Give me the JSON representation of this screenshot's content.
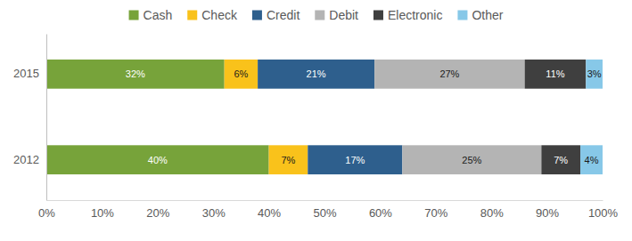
{
  "chart_data": {
    "type": "bar",
    "orientation": "horizontal",
    "stacked": true,
    "data_labels": true,
    "grid": false,
    "legend": "top",
    "categories": [
      "2015",
      "2012"
    ],
    "xlim": [
      0,
      100
    ],
    "xticks": [
      {
        "value": 0,
        "label": "0%"
      },
      {
        "value": 10,
        "label": "10%"
      },
      {
        "value": 20,
        "label": "20%"
      },
      {
        "value": 30,
        "label": "30%"
      },
      {
        "value": 40,
        "label": "40%"
      },
      {
        "value": 50,
        "label": "50%"
      },
      {
        "value": 60,
        "label": "60%"
      },
      {
        "value": 70,
        "label": "70%"
      },
      {
        "value": 80,
        "label": "80%"
      },
      {
        "value": 90,
        "label": "90%"
      },
      {
        "value": 100,
        "label": "100%"
      }
    ],
    "series": [
      {
        "name": "Cash",
        "color": "#77a33a",
        "values": [
          32,
          40
        ],
        "value_labels": [
          "32%",
          "40%"
        ]
      },
      {
        "name": "Check",
        "color": "#f9c21b",
        "values": [
          6,
          7
        ],
        "value_labels": [
          "6%",
          "7%"
        ]
      },
      {
        "name": "Credit",
        "color": "#2e5f8d",
        "values": [
          21,
          17
        ],
        "value_labels": [
          "21%",
          "17%"
        ]
      },
      {
        "name": "Debit",
        "color": "#b4b4b4",
        "values": [
          27,
          25
        ],
        "value_labels": [
          "27%",
          "25%"
        ]
      },
      {
        "name": "Electronic",
        "color": "#3f3f3f",
        "values": [
          11,
          7
        ],
        "value_labels": [
          "11%",
          "7%"
        ]
      },
      {
        "name": "Other",
        "color": "#87c8e8",
        "values": [
          3,
          4
        ],
        "value_labels": [
          "3%",
          "4%"
        ]
      }
    ]
  }
}
